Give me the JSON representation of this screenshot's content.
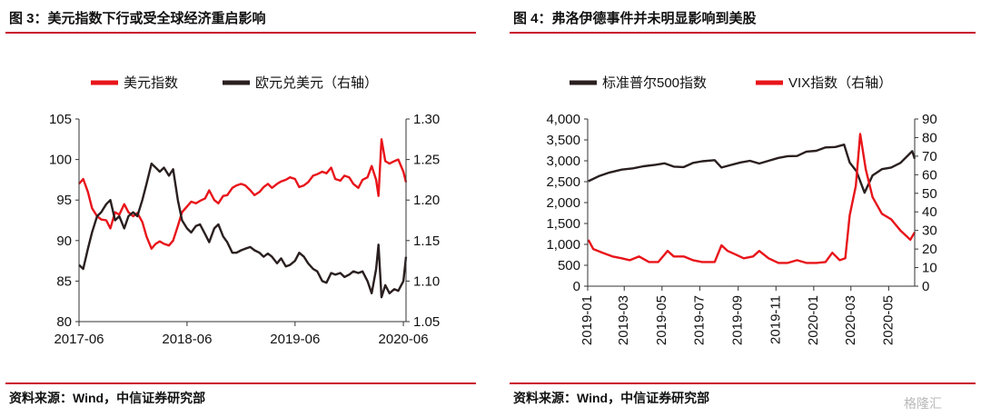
{
  "figures": [
    {
      "title": "图 3：美元指数下行或受全球经济重启影响",
      "source": "资料来源：Wind，中信证券研究部"
    },
    {
      "title": "图 4：弗洛伊德事件并未明显影响到美股",
      "source": "资料来源：Wind，中信证券研究部"
    }
  ],
  "watermark": "格隆汇",
  "chart_data": [
    {
      "type": "line",
      "title": "",
      "xlabel": "",
      "ylabel": "",
      "x_ticks": [
        "2017-06",
        "2018-06",
        "2019-06",
        "2020-06"
      ],
      "xlim": [
        "2017-06-01",
        "2020-06-10"
      ],
      "left_axis": {
        "ylim": [
          80,
          105
        ],
        "ticks": [
          "80",
          "85",
          "90",
          "95",
          "100",
          "105"
        ]
      },
      "right_axis": {
        "ylim": [
          1.05,
          1.3
        ],
        "ticks": [
          "1.05",
          "1.10",
          "1.15",
          "1.20",
          "1.25",
          "1.30"
        ]
      },
      "legend_position": "top",
      "grid": false,
      "series": [
        {
          "name": "美元指数",
          "axis": "left",
          "color": "#e8141a",
          "x": [
            "2017-06-01",
            "2017-06-15",
            "2017-07-01",
            "2017-07-15",
            "2017-08-01",
            "2017-08-15",
            "2017-09-01",
            "2017-09-15",
            "2017-10-01",
            "2017-10-15",
            "2017-11-01",
            "2017-11-15",
            "2017-12-01",
            "2017-12-15",
            "2018-01-01",
            "2018-01-15",
            "2018-02-01",
            "2018-02-15",
            "2018-03-01",
            "2018-03-15",
            "2018-04-01",
            "2018-04-15",
            "2018-05-01",
            "2018-05-15",
            "2018-06-01",
            "2018-06-15",
            "2018-07-01",
            "2018-07-15",
            "2018-08-01",
            "2018-08-15",
            "2018-09-01",
            "2018-09-15",
            "2018-10-01",
            "2018-10-15",
            "2018-11-01",
            "2018-11-15",
            "2018-12-01",
            "2018-12-15",
            "2019-01-01",
            "2019-01-15",
            "2019-02-01",
            "2019-02-15",
            "2019-03-01",
            "2019-03-15",
            "2019-04-01",
            "2019-04-15",
            "2019-05-01",
            "2019-05-15",
            "2019-06-01",
            "2019-06-15",
            "2019-07-01",
            "2019-07-15",
            "2019-08-01",
            "2019-08-15",
            "2019-09-01",
            "2019-09-15",
            "2019-10-01",
            "2019-10-15",
            "2019-11-01",
            "2019-11-15",
            "2019-12-01",
            "2019-12-15",
            "2020-01-01",
            "2020-01-15",
            "2020-02-01",
            "2020-02-15",
            "2020-03-01",
            "2020-03-09",
            "2020-03-19",
            "2020-04-01",
            "2020-04-15",
            "2020-05-01",
            "2020-05-15",
            "2020-06-01",
            "2020-06-10"
          ],
          "values": [
            97.0,
            97.6,
            96.0,
            94.0,
            93.0,
            92.6,
            92.5,
            91.5,
            93.5,
            93.2,
            94.5,
            93.5,
            93.0,
            93.4,
            92.3,
            90.5,
            89.0,
            89.6,
            89.9,
            89.6,
            89.4,
            90.0,
            91.8,
            93.5,
            94.2,
            94.8,
            94.6,
            94.9,
            95.2,
            96.2,
            95.0,
            94.6,
            95.5,
            95.6,
            96.5,
            96.8,
            97.0,
            96.8,
            96.2,
            95.6,
            96.0,
            96.6,
            97.0,
            96.5,
            97.0,
            97.3,
            97.5,
            97.8,
            97.6,
            96.6,
            96.8,
            97.2,
            98.0,
            98.2,
            98.5,
            98.3,
            99.0,
            97.6,
            97.4,
            98.0,
            97.8,
            97.0,
            96.5,
            97.5,
            97.8,
            99.2,
            97.5,
            95.5,
            102.5,
            99.8,
            99.5,
            99.8,
            100.0,
            98.5,
            97.2
          ]
        },
        {
          "name": "欧元兑美元（右轴）",
          "axis": "right",
          "color": "#2a1f1f",
          "x": [
            "2017-06-01",
            "2017-06-15",
            "2017-07-01",
            "2017-07-15",
            "2017-08-01",
            "2017-08-15",
            "2017-09-01",
            "2017-09-15",
            "2017-10-01",
            "2017-10-15",
            "2017-11-01",
            "2017-11-15",
            "2017-12-01",
            "2017-12-15",
            "2018-01-01",
            "2018-01-15",
            "2018-02-01",
            "2018-02-15",
            "2018-03-01",
            "2018-03-15",
            "2018-04-01",
            "2018-04-15",
            "2018-05-01",
            "2018-05-15",
            "2018-06-01",
            "2018-06-15",
            "2018-07-01",
            "2018-07-15",
            "2018-08-01",
            "2018-08-15",
            "2018-09-01",
            "2018-09-15",
            "2018-10-01",
            "2018-10-15",
            "2018-11-01",
            "2018-11-15",
            "2018-12-01",
            "2018-12-15",
            "2019-01-01",
            "2019-01-15",
            "2019-02-01",
            "2019-02-15",
            "2019-03-01",
            "2019-03-15",
            "2019-04-01",
            "2019-04-15",
            "2019-05-01",
            "2019-05-15",
            "2019-06-01",
            "2019-06-15",
            "2019-07-01",
            "2019-07-15",
            "2019-08-01",
            "2019-08-15",
            "2019-09-01",
            "2019-09-15",
            "2019-10-01",
            "2019-10-15",
            "2019-11-01",
            "2019-11-15",
            "2019-12-01",
            "2019-12-15",
            "2020-01-01",
            "2020-01-15",
            "2020-02-01",
            "2020-02-15",
            "2020-03-01",
            "2020-03-09",
            "2020-03-19",
            "2020-04-01",
            "2020-04-15",
            "2020-05-01",
            "2020-05-15",
            "2020-06-01",
            "2020-06-10"
          ],
          "values": [
            1.12,
            1.115,
            1.14,
            1.16,
            1.18,
            1.185,
            1.195,
            1.2,
            1.175,
            1.18,
            1.165,
            1.18,
            1.185,
            1.18,
            1.2,
            1.22,
            1.245,
            1.24,
            1.235,
            1.24,
            1.23,
            1.238,
            1.2,
            1.175,
            1.165,
            1.16,
            1.168,
            1.17,
            1.158,
            1.148,
            1.165,
            1.17,
            1.155,
            1.148,
            1.135,
            1.135,
            1.138,
            1.14,
            1.142,
            1.138,
            1.135,
            1.13,
            1.134,
            1.13,
            1.122,
            1.128,
            1.118,
            1.12,
            1.125,
            1.135,
            1.13,
            1.122,
            1.115,
            1.112,
            1.1,
            1.098,
            1.11,
            1.108,
            1.11,
            1.105,
            1.108,
            1.112,
            1.11,
            1.112,
            1.1,
            1.085,
            1.115,
            1.145,
            1.08,
            1.095,
            1.085,
            1.09,
            1.088,
            1.1,
            1.13
          ]
        }
      ]
    },
    {
      "type": "line",
      "title": "",
      "xlabel": "",
      "ylabel": "",
      "x_ticks": [
        "2019-01",
        "2019-03",
        "2019-05",
        "2019-07",
        "2019-09",
        "2019-11",
        "2020-01",
        "2020-03",
        "2020-05"
      ],
      "xlim": [
        "2019-01-01",
        "2020-06-12"
      ],
      "left_axis": {
        "ylim": [
          0,
          4000
        ],
        "ticks": [
          "0",
          "500",
          "1,000",
          "1,500",
          "2,000",
          "2,500",
          "3,000",
          "3,500",
          "4,000"
        ]
      },
      "right_axis": {
        "ylim": [
          0,
          90
        ],
        "ticks": [
          "0",
          "10",
          "20",
          "30",
          "40",
          "50",
          "60",
          "70",
          "80",
          "90"
        ]
      },
      "legend_position": "top",
      "grid": false,
      "series": [
        {
          "name": "标准普尔500指数",
          "axis": "left",
          "color": "#2a1f1f",
          "x": [
            "2019-01-02",
            "2019-01-20",
            "2019-02-05",
            "2019-02-25",
            "2019-03-15",
            "2019-04-01",
            "2019-04-20",
            "2019-05-05",
            "2019-05-20",
            "2019-06-05",
            "2019-06-20",
            "2019-07-05",
            "2019-07-25",
            "2019-08-05",
            "2019-08-20",
            "2019-09-05",
            "2019-09-20",
            "2019-10-05",
            "2019-10-20",
            "2019-11-05",
            "2019-11-20",
            "2019-12-05",
            "2019-12-20",
            "2020-01-05",
            "2020-01-20",
            "2020-02-05",
            "2020-02-19",
            "2020-02-28",
            "2020-03-10",
            "2020-03-23",
            "2020-04-05",
            "2020-04-20",
            "2020-05-05",
            "2020-05-20",
            "2020-06-08",
            "2020-06-12"
          ],
          "values": [
            2510,
            2640,
            2720,
            2790,
            2820,
            2870,
            2905,
            2940,
            2860,
            2850,
            2950,
            2990,
            3015,
            2840,
            2900,
            2960,
            3000,
            2935,
            3000,
            3070,
            3110,
            3115,
            3220,
            3240,
            3320,
            3330,
            3386,
            2960,
            2750,
            2237,
            2650,
            2800,
            2840,
            2950,
            3230,
            3050
          ]
        },
        {
          "name": "VIX指数（右轴）",
          "axis": "right",
          "color": "#e8141a",
          "x": [
            "2019-01-02",
            "2019-01-10",
            "2019-01-25",
            "2019-02-10",
            "2019-02-25",
            "2019-03-10",
            "2019-03-25",
            "2019-04-10",
            "2019-04-25",
            "2019-05-10",
            "2019-05-20",
            "2019-06-05",
            "2019-06-20",
            "2019-07-05",
            "2019-07-25",
            "2019-08-05",
            "2019-08-15",
            "2019-08-28",
            "2019-09-10",
            "2019-09-25",
            "2019-10-05",
            "2019-10-20",
            "2019-11-05",
            "2019-11-20",
            "2019-12-05",
            "2019-12-20",
            "2020-01-05",
            "2020-01-20",
            "2020-01-31",
            "2020-02-12",
            "2020-02-21",
            "2020-02-28",
            "2020-03-09",
            "2020-03-16",
            "2020-03-25",
            "2020-04-05",
            "2020-04-20",
            "2020-05-05",
            "2020-05-20",
            "2020-06-05",
            "2020-06-12"
          ],
          "values": [
            25,
            20,
            18,
            16,
            15,
            14,
            16,
            13,
            13,
            19,
            16,
            16,
            14,
            13,
            13,
            22,
            19,
            17,
            15,
            16,
            19,
            15,
            12.5,
            12.5,
            14,
            12.5,
            12.5,
            13,
            18,
            14,
            15,
            38,
            54,
            82,
            63,
            48,
            39,
            36,
            30,
            25,
            29
          ]
        }
      ]
    }
  ]
}
